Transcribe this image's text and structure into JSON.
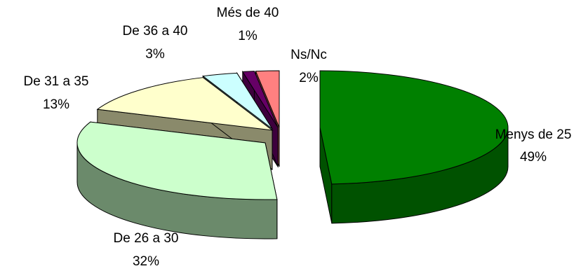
{
  "chart_data": {
    "type": "pie",
    "style": "3d-exploded",
    "title": "",
    "slices": [
      {
        "name": "Menys de 25",
        "value": 49,
        "label": "49%",
        "color": "#008000",
        "side": "#005200"
      },
      {
        "name": "De 26 a 30",
        "value": 32,
        "label": "32%",
        "color": "#ccffcc",
        "side": "#6b8a6b"
      },
      {
        "name": "De 31 a 35",
        "value": 13,
        "label": "13%",
        "color": "#ffffcc",
        "side": "#8a8a6b"
      },
      {
        "name": "De 36 a 40",
        "value": 3,
        "label": "3%",
        "color": "#ccffff",
        "side": "#6b8a8a"
      },
      {
        "name": "Més de 40",
        "value": 1,
        "label": "1%",
        "color": "#660066",
        "side": "#3d003d"
      },
      {
        "name": "Ns/Nc",
        "value": 2,
        "label": "2%",
        "color": "#ff8080",
        "side": "#8a4545"
      }
    ]
  }
}
